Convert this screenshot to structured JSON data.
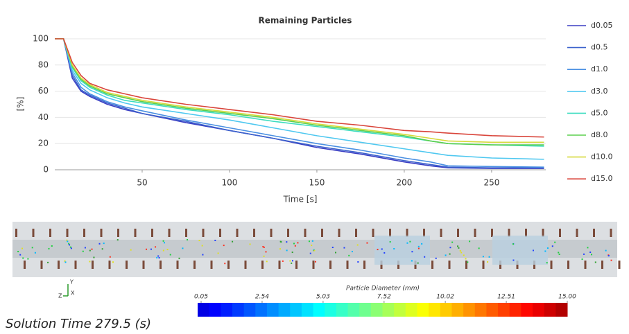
{
  "chart_data": {
    "type": "line",
    "title": "Remaining Particles",
    "xlabel": "Time [s]",
    "ylabel": "[%]",
    "x": [
      0,
      5,
      10,
      15,
      20,
      30,
      40,
      50,
      75,
      100,
      125,
      150,
      175,
      200,
      215,
      225,
      250,
      280
    ],
    "series": [
      {
        "name": "d0.05",
        "color": "#3b3fc4",
        "values": [
          100,
          100,
          70,
          60,
          56,
          50,
          46,
          43,
          36,
          30,
          24,
          17,
          12,
          6,
          3,
          1.5,
          1,
          1
        ]
      },
      {
        "name": "d0.5",
        "color": "#3c62cc",
        "values": [
          100,
          100,
          72,
          61,
          57,
          51,
          47,
          43,
          37,
          30,
          24,
          18,
          13,
          7,
          4,
          2,
          1.5,
          1.5
        ]
      },
      {
        "name": "d1.0",
        "color": "#4a90e2",
        "values": [
          100,
          100,
          74,
          63,
          58,
          52,
          48,
          45,
          38,
          32,
          26,
          20,
          15,
          9,
          6,
          3,
          2.5,
          2
        ]
      },
      {
        "name": "d3.0",
        "color": "#4fc8f0",
        "values": [
          100,
          100,
          76,
          66,
          61,
          55,
          51,
          48,
          43,
          38,
          32,
          26,
          21,
          16,
          13,
          11,
          9,
          8
        ]
      },
      {
        "name": "d5.0",
        "color": "#3ddcc0",
        "values": [
          100,
          100,
          78,
          68,
          63,
          57,
          53,
          51,
          46,
          42,
          37,
          33,
          29,
          25,
          22,
          20,
          19,
          18
        ]
      },
      {
        "name": "d8.0",
        "color": "#5ccf4e",
        "values": [
          100,
          100,
          79,
          69,
          64,
          58,
          55,
          52,
          47,
          43,
          39,
          34,
          30,
          26,
          22,
          20,
          19,
          19
        ]
      },
      {
        "name": "d10.0",
        "color": "#d6d93a",
        "values": [
          100,
          100,
          80,
          70,
          65,
          59,
          56,
          53,
          48,
          44,
          40,
          35,
          31,
          27,
          24,
          22,
          21,
          21
        ]
      },
      {
        "name": "d15.0",
        "color": "#d9453b",
        "values": [
          100,
          100,
          82,
          72,
          66,
          61,
          58,
          55,
          50,
          46,
          42,
          37,
          34,
          30,
          29,
          28,
          26,
          25
        ]
      }
    ],
    "xlim": [
      0,
      281
    ],
    "ylim": [
      0,
      100
    ],
    "xticks": [
      50,
      100,
      150,
      200,
      250
    ],
    "yticks": [
      0,
      20,
      40,
      60,
      80,
      100
    ],
    "grid": true,
    "legend": "right"
  },
  "colorbar": {
    "title": "Particle Diameter (mm)",
    "xlim": [
      0.05,
      15
    ],
    "xticks": [
      0.05,
      2.54,
      5.03,
      7.52,
      10.02,
      12.51,
      {
        "value": 15,
        "label": "15.00"
      }
    ]
  },
  "axis_triad": {
    "x": "X",
    "y": "Y",
    "z": "Z"
  },
  "solution_time": "Solution Time 279.5 (s)"
}
